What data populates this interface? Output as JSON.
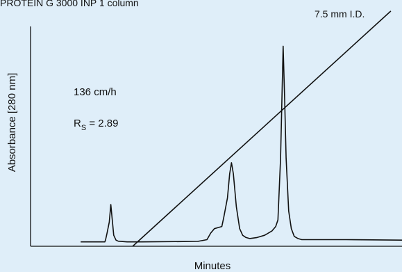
{
  "chart_data": {
    "type": "line",
    "header_fragment": "PROTEIN G 3000 INP 1 column",
    "xlabel": "Minutes",
    "ylabel": "Absorbance [280 nm]",
    "annotations": {
      "flow_rate": "136 cm/h",
      "resolution_prefix": "R",
      "resolution_subscript": "S",
      "resolution_suffix": " = 2.89",
      "column_id": "7.5 mm I.D."
    },
    "xlim": [
      0,
      100
    ],
    "ylim": [
      0,
      100
    ],
    "grid": false,
    "legend": "none",
    "series": [
      {
        "role": "chromatogram",
        "x": [
          13.5,
          20.0,
          20.2,
          20.6,
          21.2,
          21.6,
          22.0,
          22.4,
          23.0,
          23.6,
          26.0,
          30.0,
          45.0,
          47.5,
          48.5,
          49.5,
          50.5,
          51.5,
          52.0,
          53.0,
          53.6,
          54.1,
          54.6,
          55.4,
          56.3,
          57.1,
          58.0,
          59.0,
          61.0,
          63.0,
          65.0,
          66.0,
          66.6,
          67.3,
          68.0,
          68.4,
          68.8,
          69.5,
          70.2,
          71.0,
          72.0,
          73.0,
          75.0,
          85.0,
          100.0
        ],
        "y": [
          2.0,
          2.0,
          3.0,
          6.0,
          11.0,
          19.0,
          12.0,
          5.0,
          2.8,
          2.3,
          2.0,
          2.0,
          2.2,
          3.0,
          6.0,
          8.0,
          8.5,
          9.0,
          13.0,
          22.0,
          33.0,
          38.0,
          33.0,
          18.0,
          8.0,
          5.0,
          4.0,
          3.5,
          4.0,
          5.0,
          7.0,
          9.0,
          12.0,
          40.0,
          91.0,
          68.0,
          40.0,
          16.0,
          8.0,
          4.5,
          3.5,
          3.0,
          3.0,
          3.0,
          2.8
        ]
      },
      {
        "role": "gradient",
        "x": [
          27.5,
          97.0
        ],
        "y": [
          0.0,
          107.0
        ]
      }
    ]
  }
}
